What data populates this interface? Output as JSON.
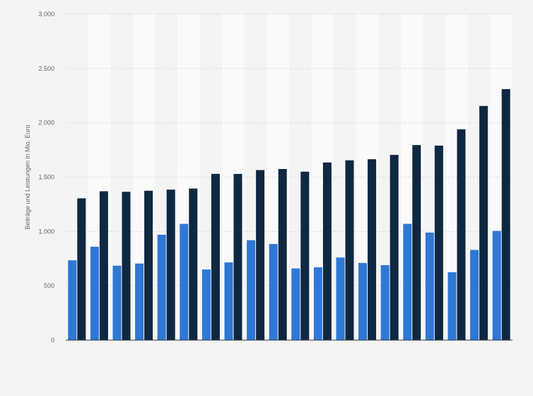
{
  "chart_data": {
    "type": "bar",
    "title": "",
    "xlabel": "",
    "ylabel": "Beiträge und Leistungen in Mio. Euro",
    "ylim": [
      0,
      3000
    ],
    "yticks": [
      0,
      500,
      1000,
      1500,
      2000,
      2500,
      3000
    ],
    "ytick_labels": [
      "0",
      "500",
      "1.000",
      "1.500",
      "2.000",
      "2.500",
      "3.000"
    ],
    "grid": true,
    "legend": "none",
    "categories": [
      "",
      "",
      "",
      "",
      "",
      "",
      "",
      "",
      "",
      "",
      "",
      "",
      "",
      "",
      "",
      "",
      "",
      "",
      "",
      ""
    ],
    "series": [
      {
        "color": "#2e78d6",
        "values": [
          735,
          860,
          685,
          705,
          970,
          1070,
          650,
          715,
          920,
          885,
          660,
          670,
          760,
          710,
          690,
          1070,
          990,
          625,
          830,
          1005
        ]
      },
      {
        "color": "#0f2842",
        "values": [
          1305,
          1370,
          1365,
          1375,
          1385,
          1395,
          1530,
          1530,
          1565,
          1575,
          1550,
          1635,
          1655,
          1665,
          1705,
          1795,
          1790,
          1940,
          2155,
          2310
        ]
      }
    ]
  }
}
